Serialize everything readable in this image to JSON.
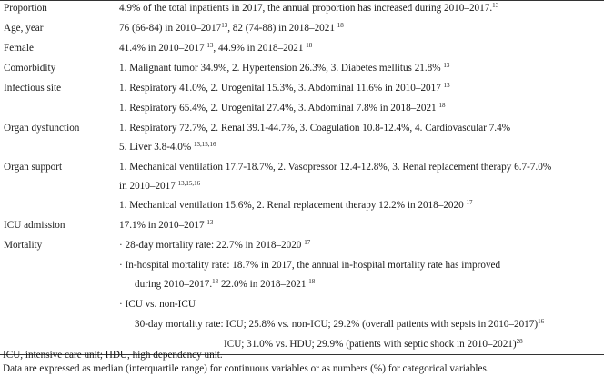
{
  "rows": [
    {
      "label": "Proportion",
      "value": "4.9% of the total inpatients in 2017, the annual proportion has increased during 2010–2017.",
      "ref": "13"
    },
    {
      "label": "Age, year",
      "value": "76 (66-84) in 2010–2017",
      "ref": "13",
      "value2": ", 82 (74-88) in 2018–2021",
      "ref2": "18"
    },
    {
      "label": "Female",
      "value": "41.4% in 2010–2017",
      "ref": "13",
      "value2": ", 44.9% in 2018–2021",
      "ref2": "18"
    },
    {
      "label": "Comorbidity",
      "value": "1. Malignant tumor 34.9%, 2. Hypertension 26.3%, 3. Diabetes mellitus 21.8%",
      "ref": "13"
    },
    {
      "label": "Infectious site",
      "value": "1. Respiratory 41.0%, 2. Urogenital 15.3%, 3. Abdominal 11.6% in 2010–2017",
      "ref": "13"
    },
    {
      "label": "",
      "value": "1. Respiratory 65.4%, 2. Urogenital 27.4%, 3. Abdominal 7.8% in 2018–2021",
      "ref": "18"
    },
    {
      "label": "Organ dysfunction",
      "value": "1. Respiratory 72.7%, 2. Renal 39.1-44.7%, 3. Coagulation 10.8-12.4%, 4. Cardiovascular 7.4%",
      "ref": ""
    },
    {
      "label": "",
      "value": "5. Liver 3.8-4.0%",
      "ref": "13,15,16"
    },
    {
      "label": "Organ support",
      "value": "1. Mechanical ventilation 17.7-18.7%, 2. Vasopressor 12.4-12.8%, 3. Renal replacement therapy 6.7-7.0%",
      "ref": ""
    },
    {
      "label": "",
      "value": "in 2010–2017",
      "ref": "13,15,16"
    },
    {
      "label": "",
      "value": "1. Mechanical ventilation 15.6%, 2. Renal replacement therapy 12.2% in 2018–2020",
      "ref": "17"
    },
    {
      "label": "ICU admission",
      "value": "17.1% in 2010–2017",
      "ref": "13"
    },
    {
      "label": "Mortality",
      "value": "· 28-day mortality rate: 22.7% in 2018–2020",
      "ref": "17"
    },
    {
      "label": "",
      "value": "· In-hospital mortality rate: 18.7% in 2017, the annual in-hospital mortality rate has improved",
      "ref": ""
    },
    {
      "label": "",
      "value": "during 2010–2017.",
      "ref": "13",
      "value2": " 22.0% in 2018–2021",
      "ref2": "18"
    },
    {
      "label": "",
      "value": "· ICU vs. non-ICU",
      "ref": ""
    },
    {
      "label": "",
      "value": "30-day mortality rate: ICU; 25.8% vs. non-ICU; 29.2% (overall patients with sepsis in 2010–2017)",
      "ref": "16"
    },
    {
      "label": "",
      "value": "ICU; 31.0% vs. HDU; 29.9% (patients with septic shock in 2010–2021)",
      "ref": "28"
    }
  ],
  "footnotes": [
    "ICU, intensive care unit; HDU, high dependency unit.",
    "Data are expressed as median (interquartile range) for continuous variables or as numbers (%) for categorical variables."
  ]
}
